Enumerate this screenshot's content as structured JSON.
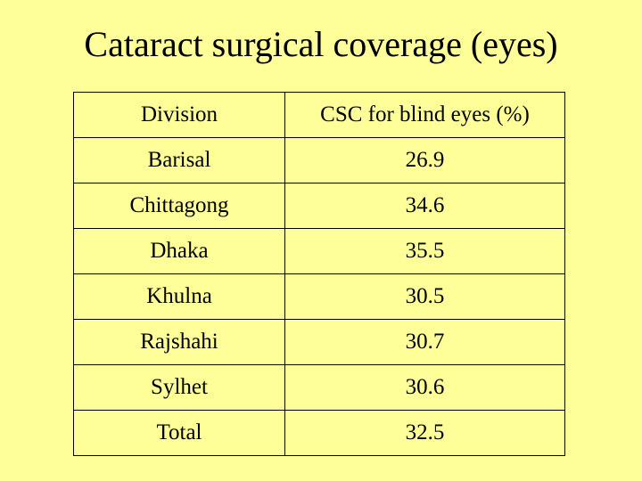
{
  "slide": {
    "title": "Cataract surgical coverage (eyes)"
  },
  "table": {
    "headers": [
      "Division",
      "CSC for blind eyes (%)"
    ],
    "rows": [
      [
        "Barisal",
        "26.9"
      ],
      [
        "Chittagong",
        "34.6"
      ],
      [
        "Dhaka",
        "35.5"
      ],
      [
        "Khulna",
        "30.5"
      ],
      [
        "Rajshahi",
        "30.7"
      ],
      [
        "Sylhet",
        "30.6"
      ],
      [
        "Total",
        "32.5"
      ]
    ]
  },
  "colors": {
    "background": "#ffff99",
    "text": "#000000",
    "border": "#000000"
  }
}
